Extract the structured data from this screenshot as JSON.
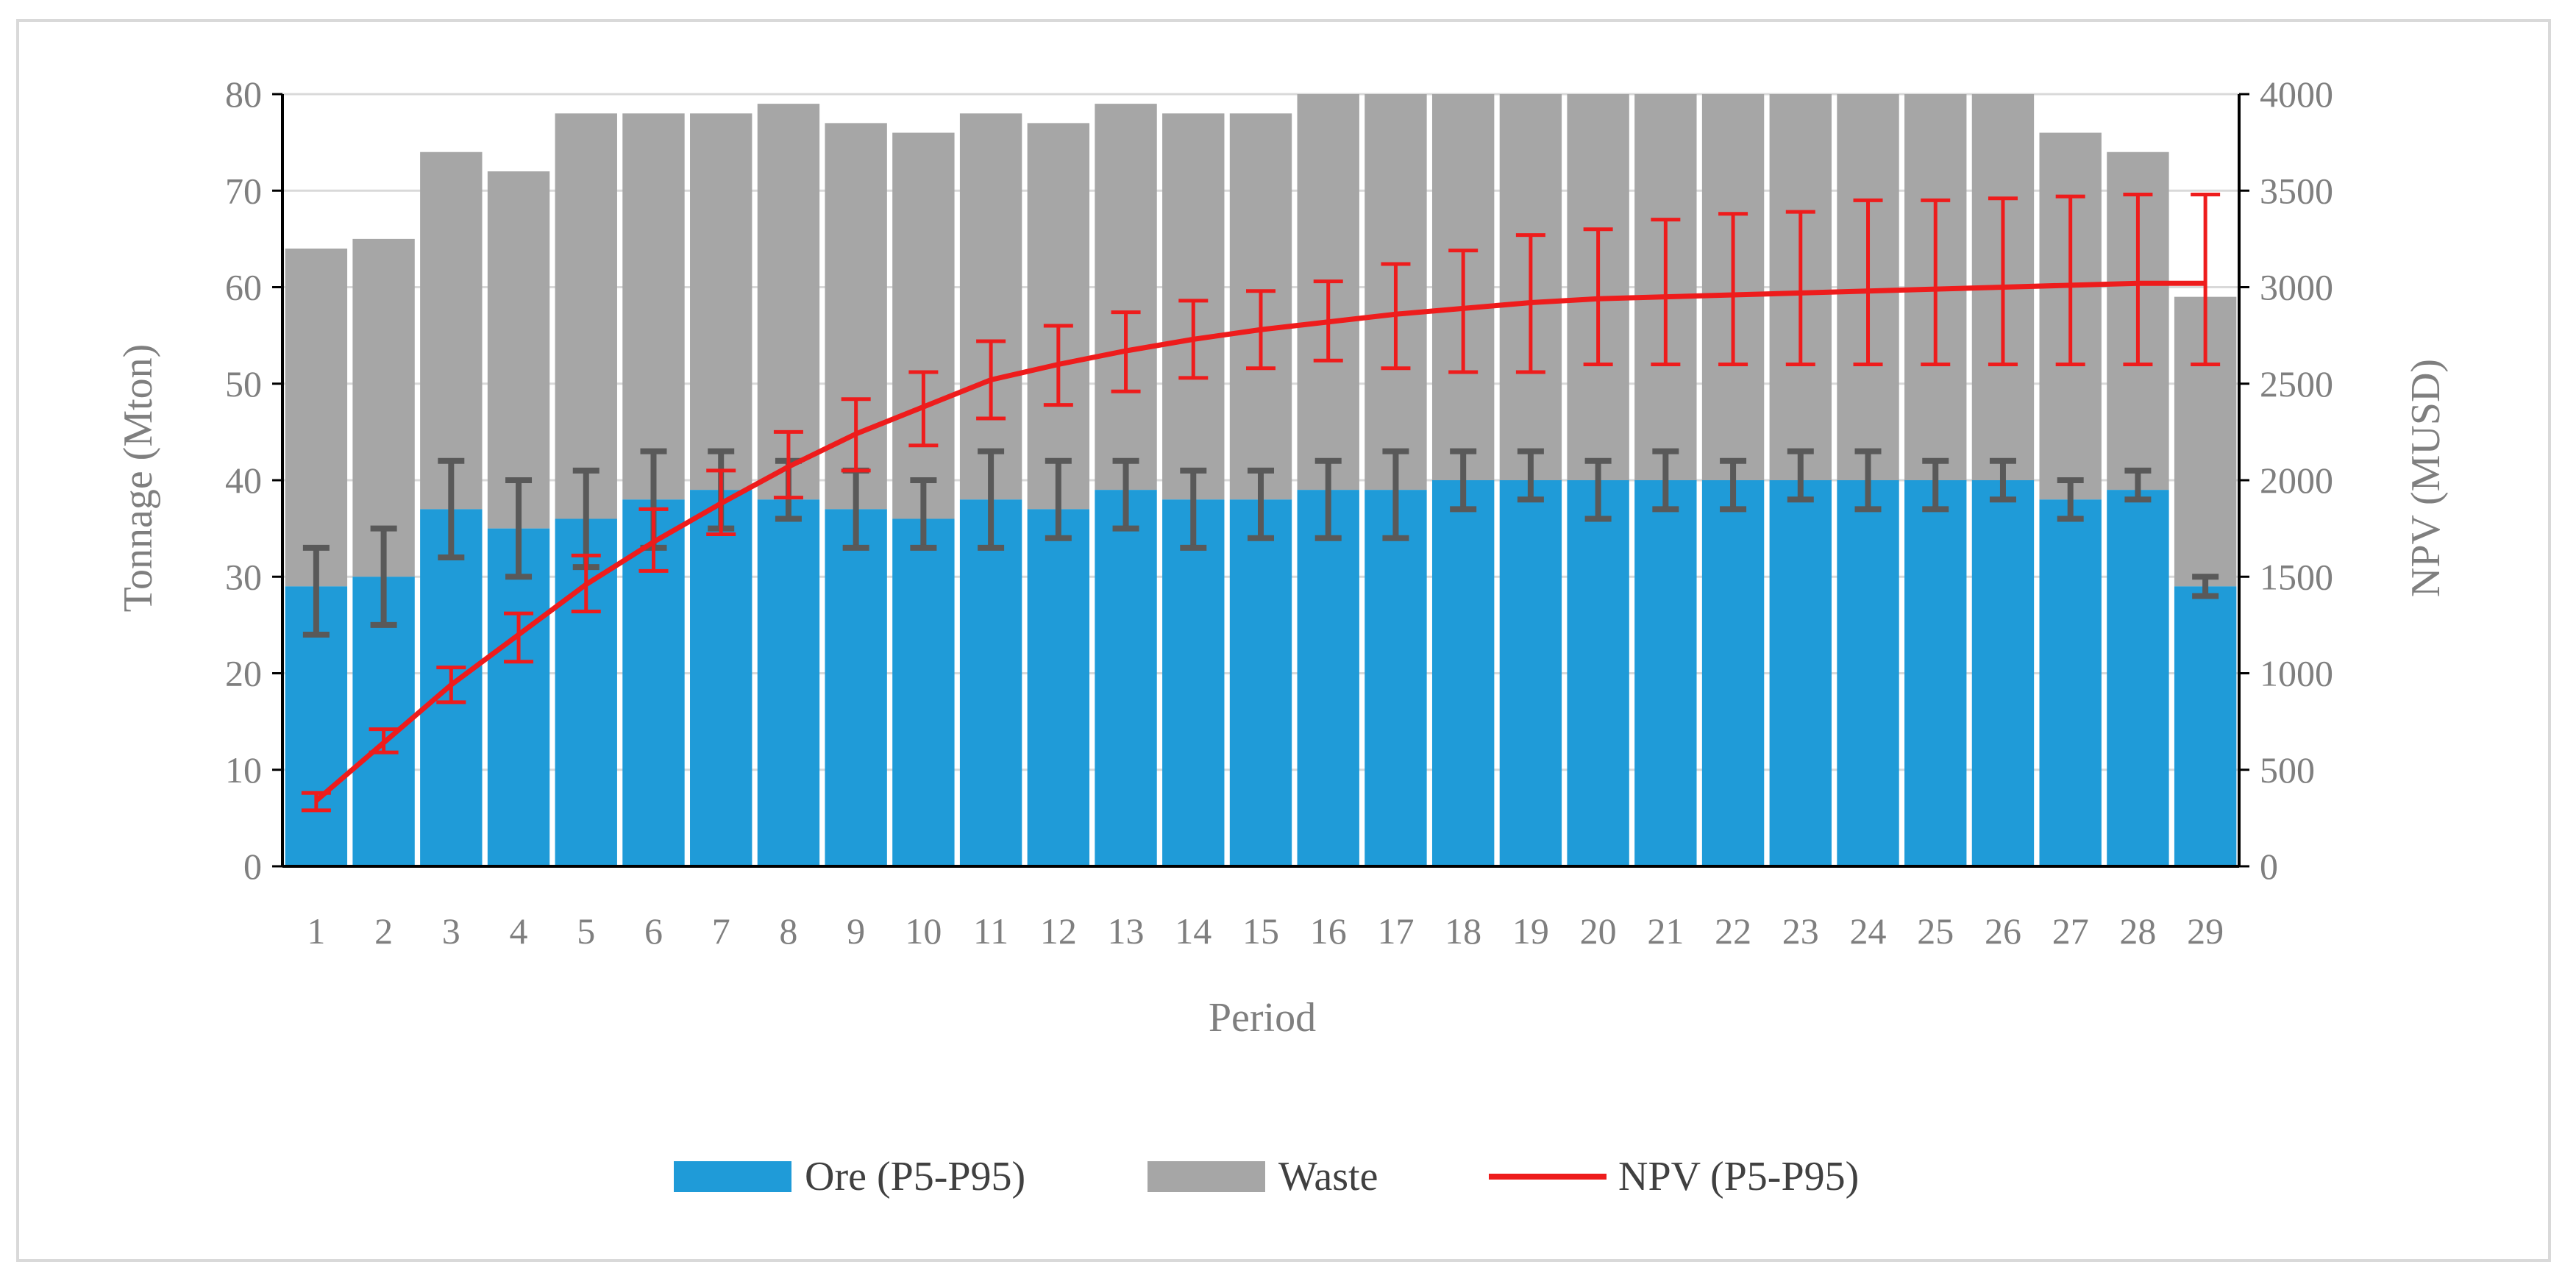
{
  "chart_data": {
    "type": "bar",
    "stacked": true,
    "title": "",
    "xlabel": "Period",
    "ylabel": "Tonnage (Mton)",
    "y2label": "NPV (MUSD)",
    "ylim": [
      0,
      80
    ],
    "y2lim": [
      0,
      4000
    ],
    "yticks": [
      "0",
      "10",
      "20",
      "30",
      "40",
      "50",
      "60",
      "70",
      "80"
    ],
    "y2ticks": [
      "0",
      "500",
      "1000",
      "1500",
      "2000",
      "2500",
      "3000",
      "3500",
      "4000"
    ],
    "grid": true,
    "legend_position": "bottom",
    "categories": [
      "1",
      "2",
      "3",
      "4",
      "5",
      "6",
      "7",
      "8",
      "9",
      "10",
      "11",
      "12",
      "13",
      "14",
      "15",
      "16",
      "17",
      "18",
      "19",
      "20",
      "21",
      "22",
      "23",
      "24",
      "25",
      "26",
      "27",
      "28",
      "29"
    ],
    "series": [
      {
        "name": "Ore (P5-P95)",
        "type": "bar",
        "axis": "left",
        "color": "#1f9bd8",
        "values": [
          29,
          30,
          37,
          35,
          36,
          38,
          39,
          38,
          37,
          36,
          38,
          37,
          39,
          38,
          38,
          39,
          39,
          40,
          40,
          40,
          40,
          40,
          40,
          40,
          40,
          40,
          38,
          39,
          29
        ],
        "p5": [
          24,
          25,
          32,
          30,
          31,
          33,
          35,
          36,
          33,
          33,
          33,
          34,
          35,
          33,
          34,
          34,
          34,
          37,
          38,
          36,
          37,
          37,
          38,
          37,
          37,
          38,
          36,
          38,
          28
        ],
        "p95": [
          33,
          35,
          42,
          40,
          41,
          43,
          43,
          42,
          41,
          40,
          43,
          42,
          42,
          41,
          41,
          42,
          43,
          43,
          43,
          42,
          43,
          42,
          43,
          43,
          42,
          42,
          40,
          41,
          30
        ],
        "error_color": "#595959"
      },
      {
        "name": "Waste",
        "type": "bar",
        "axis": "left",
        "color": "#a6a6a6",
        "totals": [
          64,
          65,
          74,
          72,
          78,
          78,
          78,
          79,
          77,
          76,
          78,
          77,
          79,
          78,
          78,
          80,
          80,
          80,
          80,
          80,
          80,
          80,
          80,
          80,
          80,
          80,
          76,
          74,
          59
        ]
      },
      {
        "name": "NPV (P5-P95)",
        "type": "line",
        "axis": "right",
        "color": "#ee1c1c",
        "values": [
          340,
          640,
          940,
          1200,
          1460,
          1680,
          1880,
          2070,
          2240,
          2380,
          2520,
          2600,
          2670,
          2730,
          2780,
          2820,
          2860,
          2890,
          2920,
          2940,
          2950,
          2960,
          2970,
          2980,
          2990,
          3000,
          3010,
          3020,
          3020
        ],
        "p5": [
          290,
          590,
          850,
          1060,
          1320,
          1530,
          1720,
          1910,
          2050,
          2180,
          2320,
          2390,
          2460,
          2530,
          2580,
          2620,
          2580,
          2560,
          2560,
          2600,
          2600,
          2600,
          2600,
          2600,
          2600,
          2600,
          2600,
          2600,
          2600
        ],
        "p95": [
          380,
          710,
          1030,
          1310,
          1610,
          1850,
          2050,
          2250,
          2420,
          2560,
          2720,
          2800,
          2870,
          2930,
          2980,
          3030,
          3120,
          3190,
          3270,
          3300,
          3350,
          3380,
          3390,
          3450,
          3450,
          3460,
          3470,
          3480,
          3480
        ]
      }
    ]
  }
}
